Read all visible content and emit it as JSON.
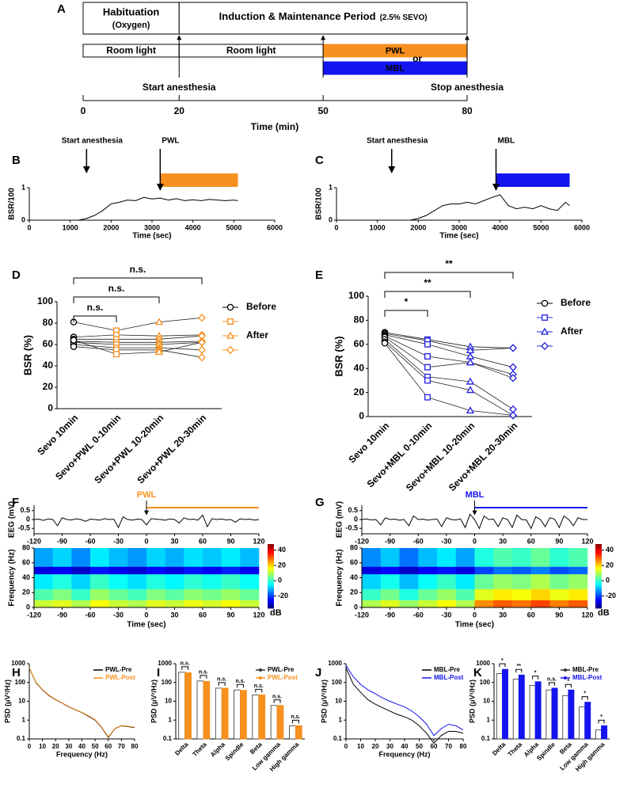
{
  "chart_data": [
    {
      "type": "timeline",
      "panel": "A",
      "xlabel": "Time (min)",
      "xlim": [
        0,
        80
      ],
      "xticks": [
        0,
        20,
        50,
        80
      ],
      "phases": [
        {
          "label": "Habituation",
          "note": "(Oxygen)",
          "start": 0,
          "end": 20
        },
        {
          "label": "Induction & Maintenance Period",
          "note": "(2.5% SEVO)",
          "start": 20,
          "end": 80
        }
      ],
      "lights": [
        {
          "label": "Room light",
          "start": 0,
          "end": 20
        },
        {
          "label": "Room light",
          "start": 20,
          "end": 50
        },
        {
          "label": "PWL",
          "start": 50,
          "end": 80,
          "color": "#f7901e"
        },
        {
          "label": "MBL",
          "start": 50,
          "end": 80,
          "color": "#1414ee"
        }
      ],
      "or_label": "or",
      "events": [
        {
          "label": "Start anesthesia",
          "at": 20
        },
        {
          "at": 50
        },
        {
          "label": "Stop anesthesia",
          "at": 80
        }
      ]
    },
    {
      "type": "line",
      "panel": "B",
      "ylabel": "BSR/100",
      "xlabel": "Time (sec)",
      "xlim": [
        0,
        6000
      ],
      "xticks": [
        0,
        1000,
        2000,
        3000,
        4000,
        5000,
        6000
      ],
      "ylim": [
        0,
        1
      ],
      "yticks": [
        0,
        1
      ],
      "color": "#000000",
      "x": [
        0,
        200,
        400,
        600,
        800,
        1000,
        1200,
        1400,
        1600,
        1800,
        2000,
        2200,
        2400,
        2600,
        2800,
        3000,
        3200,
        3400,
        3600,
        3800,
        4000,
        4200,
        4400,
        4600,
        4800,
        5000,
        5100
      ],
      "values": [
        0,
        0,
        0,
        0,
        0,
        0,
        0,
        0.05,
        0.15,
        0.3,
        0.5,
        0.55,
        0.62,
        0.6,
        0.7,
        0.65,
        0.68,
        0.62,
        0.66,
        0.6,
        0.63,
        0.6,
        0.64,
        0.62,
        0.6,
        0.62,
        0.6
      ],
      "events": [
        {
          "label": "Start anesthesia",
          "at": 1400
        }
      ],
      "stimulus": {
        "label": "PWL",
        "start": 3200,
        "end": 5100,
        "color": "#f7901e"
      }
    },
    {
      "type": "line",
      "panel": "C",
      "ylabel": "BSR/100",
      "xlabel": "Time (sec)",
      "xlim": [
        0,
        6000
      ],
      "xticks": [
        0,
        1000,
        2000,
        3000,
        4000,
        5000,
        6000
      ],
      "ylim": [
        0,
        1
      ],
      "yticks": [
        0,
        1
      ],
      "color": "#000000",
      "x": [
        0,
        200,
        400,
        600,
        800,
        1000,
        1200,
        1400,
        1600,
        1800,
        2000,
        2200,
        2400,
        2600,
        2800,
        3000,
        3200,
        3400,
        3600,
        3800,
        4000,
        4200,
        4400,
        4600,
        4800,
        5000,
        5200,
        5400,
        5600,
        5700
      ],
      "values": [
        0,
        0,
        0,
        0,
        0,
        0,
        0,
        0,
        0,
        0,
        0.05,
        0.15,
        0.3,
        0.45,
        0.5,
        0.5,
        0.55,
        0.5,
        0.6,
        0.7,
        0.78,
        0.45,
        0.35,
        0.4,
        0.35,
        0.45,
        0.35,
        0.3,
        0.55,
        0.45
      ],
      "events": [
        {
          "label": "Start anesthesia",
          "at": 1350
        }
      ],
      "stimulus": {
        "label": "MBL",
        "start": 3900,
        "end": 5700,
        "color": "#1414ee"
      }
    },
    {
      "type": "paired",
      "panel": "D",
      "ylabel": "BSR (%)",
      "ylim": [
        0,
        100
      ],
      "yticks": [
        0,
        20,
        40,
        60,
        80,
        100
      ],
      "categories": [
        "Sevo 10min",
        "Sevo+PWL 0-10min",
        "Sevo+PWL 10-20min",
        "Sevo+PWL 20-30min"
      ],
      "markers": [
        "circle",
        "square",
        "triangle",
        "diamond"
      ],
      "marker_colors": [
        "#000000",
        "#f7901e",
        "#f7901e",
        "#f7901e"
      ],
      "legend": [
        "Before",
        null,
        "After",
        null
      ],
      "subjects": [
        [
          81,
          73,
          81,
          85
        ],
        [
          67,
          69,
          68,
          69
        ],
        [
          65,
          65,
          65,
          68
        ],
        [
          63,
          62,
          62,
          63
        ],
        [
          62,
          60,
          60,
          62
        ],
        [
          60,
          57,
          57,
          55
        ],
        [
          58,
          55,
          55,
          48
        ],
        [
          64,
          51,
          53,
          62
        ]
      ],
      "comparisons": [
        {
          "from": 0,
          "to": 3,
          "label": "n.s."
        },
        {
          "from": 0,
          "to": 2,
          "label": "n.s."
        },
        {
          "from": 0,
          "to": 1,
          "label": "n.s."
        }
      ]
    },
    {
      "type": "paired",
      "panel": "E",
      "ylabel": "BSR (%)",
      "ylim": [
        0,
        100
      ],
      "yticks": [
        0,
        20,
        40,
        60,
        80,
        100
      ],
      "categories": [
        "Sevo 10min",
        "Sevo+MBL 0-10min",
        "Sevo+MBL 10-20min",
        "Sevo+MBL 20-30min"
      ],
      "markers": [
        "circle",
        "square",
        "triangle",
        "diamond"
      ],
      "marker_colors": [
        "#000000",
        "#2020e0",
        "#2020e0",
        "#2020e0"
      ],
      "legend": [
        "Before",
        null,
        "After",
        null
      ],
      "subjects": [
        [
          70,
          64,
          58,
          57
        ],
        [
          69,
          63,
          55,
          57
        ],
        [
          68,
          60,
          50,
          41
        ],
        [
          67,
          50,
          45,
          35
        ],
        [
          66,
          41,
          45,
          32
        ],
        [
          64,
          33,
          29,
          6
        ],
        [
          62,
          30,
          22,
          1
        ],
        [
          61,
          16,
          5,
          1
        ]
      ],
      "comparisons": [
        {
          "from": 0,
          "to": 3,
          "label": "**"
        },
        {
          "from": 0,
          "to": 2,
          "label": "**"
        },
        {
          "from": 0,
          "to": 1,
          "label": "*"
        }
      ]
    },
    {
      "type": "trace",
      "panel": "F",
      "ylabel": "EEG (mV)",
      "xlim": [
        -120,
        120
      ],
      "xticks": [
        -120,
        -90,
        -60,
        -30,
        0,
        30,
        60,
        90,
        120
      ],
      "ylim": [
        -0.8,
        0.8
      ],
      "yticks": [
        -0.5,
        0,
        0.5
      ],
      "color": "#000000",
      "x": [
        -120,
        -115,
        -110,
        -105,
        -100,
        -95,
        -90,
        -85,
        -80,
        -75,
        -70,
        -65,
        -60,
        -55,
        -50,
        -45,
        -40,
        -35,
        -30,
        -25,
        -20,
        -15,
        -10,
        -5,
        0,
        5,
        10,
        15,
        20,
        25,
        30,
        35,
        40,
        45,
        50,
        55,
        60,
        65,
        70,
        75,
        80,
        85,
        90,
        95,
        100,
        105,
        110,
        115,
        120
      ],
      "values": [
        0,
        0.02,
        -0.05,
        0.03,
        0,
        -0.35,
        0.1,
        0,
        -0.02,
        0.04,
        0,
        -0.1,
        0.02,
        0,
        -0.03,
        0.05,
        0,
        0.02,
        -0.45,
        0.15,
        0,
        -0.03,
        0.02,
        0,
        -0.3,
        0.05,
        0.02,
        0,
        -0.04,
        0.03,
        0,
        -0.2,
        0.1,
        0,
        0.02,
        -0.03,
        0.25,
        -0.4,
        0.05,
        0,
        0.03,
        -0.02,
        0,
        -0.15,
        0.04,
        0,
        0.02,
        -0.03,
        0
      ],
      "stimulus": {
        "label": "PWL",
        "start": 0,
        "end": 120,
        "color": "#f7901e"
      }
    },
    {
      "type": "heatmap",
      "ylabel": "Frequency (Hz)",
      "xlabel": "Time (sec)",
      "xlim": [
        -120,
        120
      ],
      "xticks": [
        -120,
        -90,
        -60,
        -30,
        0,
        30,
        60,
        90,
        120
      ],
      "ylim": [
        0,
        80
      ],
      "yticks": [
        0,
        20,
        40,
        60,
        80
      ],
      "colormap": "jet",
      "zlim": [
        -36,
        48
      ],
      "zticks": [
        -20,
        0,
        20,
        40
      ],
      "zlabel": "dB",
      "x_edges": [
        -120,
        -100,
        -80,
        -60,
        -40,
        -20,
        0,
        20,
        40,
        60,
        80,
        100,
        120
      ],
      "y_edges": [
        0,
        10,
        25,
        45,
        55,
        80
      ],
      "z": [
        [
          12,
          14,
          10,
          16,
          12,
          10,
          14,
          12,
          15,
          13,
          16,
          12
        ],
        [
          2,
          6,
          0,
          8,
          4,
          1,
          6,
          3,
          7,
          5,
          8,
          4
        ],
        [
          -6,
          -2,
          -8,
          0,
          -4,
          -7,
          -2,
          -5,
          -1,
          -3,
          0,
          -4
        ],
        [
          -28,
          -26,
          -30,
          -24,
          -27,
          -29,
          -25,
          -28,
          -24,
          -26,
          -23,
          -27
        ],
        [
          -12,
          -8,
          -14,
          -6,
          -10,
          -13,
          -8,
          -11,
          -7,
          -9,
          -6,
          -10
        ]
      ]
    },
    {
      "type": "trace",
      "panel": "G",
      "ylabel": "EEG (mV)",
      "xlim": [
        -120,
        120
      ],
      "xticks": [
        -120,
        -90,
        -60,
        -30,
        0,
        30,
        60,
        90,
        120
      ],
      "ylim": [
        -0.8,
        0.8
      ],
      "yticks": [
        -0.5,
        0,
        0.5
      ],
      "color": "#000000",
      "x": [
        -120,
        -115,
        -110,
        -105,
        -100,
        -95,
        -90,
        -85,
        -80,
        -75,
        -70,
        -65,
        -60,
        -55,
        -50,
        -45,
        -40,
        -35,
        -30,
        -25,
        -20,
        -15,
        -10,
        -5,
        0,
        5,
        10,
        15,
        20,
        25,
        30,
        35,
        40,
        45,
        50,
        55,
        60,
        65,
        70,
        75,
        80,
        85,
        90,
        95,
        100,
        105,
        110,
        115,
        120
      ],
      "values": [
        0,
        0.03,
        -0.02,
        0,
        -0.3,
        0.1,
        0,
        0.02,
        -0.04,
        0,
        -0.35,
        0.2,
        0,
        0.02,
        -0.03,
        0,
        0.02,
        -0.4,
        0.1,
        0,
        -0.02,
        0.03,
        -0.45,
        0.3,
        0,
        -0.5,
        0.2,
        0,
        0.02,
        -0.4,
        0.1,
        0,
        -0.45,
        0.25,
        0,
        -0.02,
        -0.5,
        0.15,
        0,
        -0.4,
        0.1,
        0.02,
        -0.45,
        0.2,
        0,
        -0.35,
        0.1,
        0,
        0
      ],
      "stimulus": {
        "label": "MBL",
        "start": 0,
        "end": 120,
        "color": "#1414ee"
      }
    },
    {
      "type": "heatmap",
      "ylabel": "Frequency (Hz)",
      "xlabel": "Time (sec)",
      "xlim": [
        -120,
        120
      ],
      "xticks": [
        -120,
        -90,
        -60,
        -30,
        0,
        30,
        60,
        90,
        120
      ],
      "ylim": [
        0,
        80
      ],
      "yticks": [
        0,
        20,
        40,
        60,
        80
      ],
      "colormap": "jet",
      "zlim": [
        -36,
        48
      ],
      "zticks": [
        -20,
        0,
        20,
        40
      ],
      "zlabel": "dB",
      "x_edges": [
        -120,
        -100,
        -80,
        -60,
        -40,
        -20,
        0,
        20,
        40,
        60,
        80,
        100,
        120
      ],
      "y_edges": [
        0,
        10,
        25,
        45,
        55,
        80
      ],
      "z": [
        [
          10,
          14,
          8,
          12,
          16,
          10,
          26,
          30,
          28,
          32,
          27,
          30
        ],
        [
          0,
          5,
          -2,
          4,
          8,
          2,
          14,
          18,
          16,
          20,
          15,
          18
        ],
        [
          -8,
          -3,
          -10,
          -4,
          0,
          -6,
          4,
          8,
          6,
          10,
          5,
          8
        ],
        [
          -28,
          -25,
          -30,
          -26,
          -24,
          -28,
          -20,
          -16,
          -18,
          -15,
          -19,
          -17
        ],
        [
          -14,
          -9,
          -16,
          -10,
          -6,
          -12,
          -2,
          2,
          0,
          4,
          -1,
          2
        ]
      ]
    },
    {
      "type": "psd",
      "panel": "H",
      "ylabel": "PSD (μV²/Hz)",
      "xlabel": "Frequency (Hz)",
      "xlim": [
        0,
        80
      ],
      "xticks": [
        0,
        10,
        20,
        30,
        40,
        50,
        60,
        70,
        80
      ],
      "ylim": [
        0.1,
        1000
      ],
      "yticks": [
        0.1,
        1,
        10,
        100,
        1000
      ],
      "ylog": true,
      "legend": "upper right",
      "x": [
        0,
        5,
        10,
        15,
        20,
        25,
        30,
        35,
        40,
        45,
        50,
        55,
        60,
        65,
        70,
        75,
        80
      ],
      "series": [
        {
          "name": "PWL-Pre",
          "color": "#000000",
          "values": [
            600,
            100,
            40,
            20,
            12,
            8,
            5,
            3.5,
            2.5,
            1.6,
            1,
            0.4,
            0.12,
            0.35,
            0.5,
            0.45,
            0.4
          ]
        },
        {
          "name": "PWL-Post",
          "color": "#f7901e",
          "values": [
            620,
            105,
            42,
            21,
            12.5,
            8.2,
            5.2,
            3.6,
            2.6,
            1.7,
            1.05,
            0.42,
            0.13,
            0.36,
            0.52,
            0.47,
            0.42
          ]
        }
      ]
    },
    {
      "type": "bar",
      "panel": "I",
      "ylabel": "PSD (μV²/Hz)",
      "ylim": [
        0.1,
        1000
      ],
      "yticks": [
        0.1,
        1,
        10,
        100,
        1000
      ],
      "ylog": true,
      "legend": "upper right",
      "categories": [
        "Delta",
        "Theta",
        "Alpha",
        "Spindle",
        "Beta",
        "Low gamma",
        "High gamma"
      ],
      "significance": [
        "n.s.",
        "n.s.",
        "n.s.",
        "n.s.",
        "n.s.",
        "n.s.",
        "n.s."
      ],
      "series": [
        {
          "name": "PWL-Pre",
          "color": "#ffffff",
          "edgecolor": "#333333",
          "values": [
            350,
            120,
            50,
            40,
            22,
            6,
            0.5
          ]
        },
        {
          "name": "PWL-Post",
          "color": "#f7901e",
          "edgecolor": "#f7901e",
          "values": [
            330,
            115,
            50,
            38,
            22,
            6,
            0.5
          ]
        }
      ]
    },
    {
      "type": "psd",
      "panel": "J",
      "ylabel": "PSD (μV²/Hz)",
      "xlabel": "Frequency (Hz)",
      "xlim": [
        0,
        80
      ],
      "xticks": [
        0,
        10,
        20,
        30,
        40,
        50,
        60,
        70,
        80
      ],
      "ylim": [
        0.1,
        1000
      ],
      "yticks": [
        0.1,
        1,
        10,
        100,
        1000
      ],
      "ylog": true,
      "legend": "upper right",
      "x": [
        0,
        5,
        10,
        15,
        20,
        25,
        30,
        35,
        40,
        45,
        50,
        55,
        60,
        65,
        70,
        75,
        80
      ],
      "series": [
        {
          "name": "MBL-Pre",
          "color": "#000000",
          "values": [
            600,
            80,
            30,
            12,
            7,
            4.5,
            3,
            2,
            1.5,
            1,
            0.5,
            0.2,
            0.06,
            0.15,
            0.25,
            0.25,
            0.2
          ]
        },
        {
          "name": "MBL-Post",
          "color": "#1414ee",
          "values": [
            800,
            200,
            80,
            40,
            25,
            15,
            10,
            7,
            5,
            3,
            1.5,
            0.6,
            0.15,
            0.35,
            0.6,
            0.5,
            0.3
          ]
        }
      ]
    },
    {
      "type": "bar",
      "panel": "K",
      "ylabel": "PSD (μV²/Hz)",
      "ylim": [
        0.1,
        1000
      ],
      "yticks": [
        0.1,
        1,
        10,
        100,
        1000
      ],
      "ylog": true,
      "legend": "upper right",
      "categories": [
        "Delta",
        "Theta",
        "Alpha",
        "Spindle",
        "Beta",
        "Low gamma",
        "High gamma"
      ],
      "significance": [
        "*",
        "**",
        "*",
        "n.s.",
        "*",
        "*",
        "*"
      ],
      "series": [
        {
          "name": "MBL-Pre",
          "color": "#ffffff",
          "edgecolor": "#333333",
          "values": [
            300,
            150,
            70,
            40,
            20,
            5,
            0.3
          ]
        },
        {
          "name": "MBL-Post",
          "color": "#1414ee",
          "edgecolor": "#1414ee",
          "values": [
            500,
            250,
            110,
            50,
            40,
            9,
            0.5
          ]
        }
      ]
    }
  ]
}
